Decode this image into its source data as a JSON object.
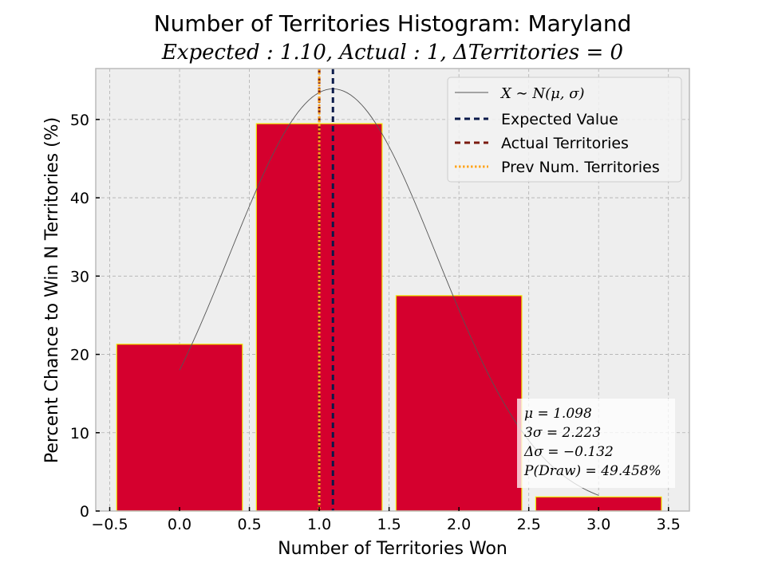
{
  "chart_data": {
    "type": "bar",
    "title": "Number of Territories Histogram: Maryland",
    "subtitle": "Expected : 1.10, Actual : 1, ΔTerritories = 0",
    "xlabel": "Number of Territories Won",
    "ylabel": "Percent Chance to Win N Territories (%)",
    "xlim": [
      -0.6,
      3.65
    ],
    "ylim": [
      0,
      56.5
    ],
    "xticks": [
      -0.5,
      0.0,
      0.5,
      1.0,
      1.5,
      2.0,
      2.5,
      3.0,
      3.5
    ],
    "xtick_labels": [
      "−0.5",
      "0.0",
      "0.5",
      "1.0",
      "1.5",
      "2.0",
      "2.5",
      "3.0",
      "3.5"
    ],
    "yticks": [
      0,
      10,
      20,
      30,
      40,
      50
    ],
    "ytick_labels": [
      "0",
      "10",
      "20",
      "30",
      "40",
      "50"
    ],
    "grid": true,
    "categories": [
      0,
      1,
      2,
      3
    ],
    "values": [
      21.3,
      49.458,
      27.5,
      1.8
    ],
    "bar_width": 0.9,
    "normal_curve": {
      "mu": 1.098,
      "sigma": 0.741,
      "x_range": [
        0.0,
        3.0
      ]
    },
    "vlines": {
      "expected": 1.098,
      "actual": 1,
      "previous": 1
    },
    "legend": {
      "position": "top-right",
      "entries": [
        {
          "key": "curve",
          "label": "X ∼ N(μ, σ)"
        },
        {
          "key": "expected",
          "label": "Expected Value"
        },
        {
          "key": "actual",
          "label": "Actual Territories"
        },
        {
          "key": "previous",
          "label": "Prev Num. Territories"
        }
      ]
    },
    "stats": {
      "mu": "μ = 1.098",
      "three_sigma": "3σ = 2.223",
      "delta_sigma": "Δσ = −0.132",
      "p_draw": "P(Draw) = 49.458%"
    },
    "colors": {
      "bar_fill": "#d5002e",
      "bar_edge": "#f2e600",
      "curve": "#555555",
      "expected": "#0a1a4a",
      "actual": "#7a1a0e",
      "previous": "#ffa51f",
      "plot_bg": "#eeeeee",
      "grid": "#b0b0b0",
      "frame": "#bcbcbc"
    }
  }
}
